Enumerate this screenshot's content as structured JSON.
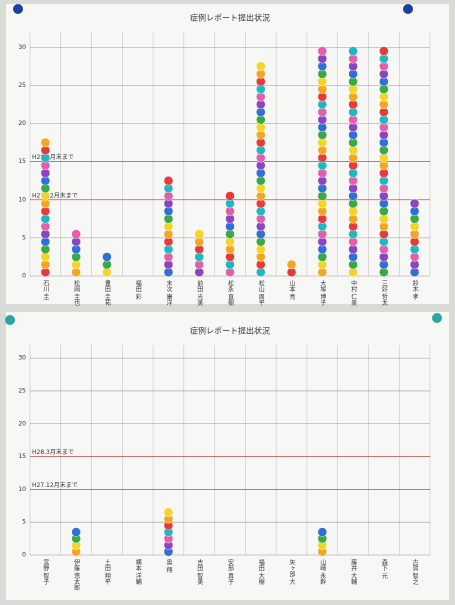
{
  "chart_data": [
    {
      "type": "bar",
      "title": "症例レポート提出状況",
      "categories": [
        "石川 圭",
        "松岡 圭也",
        "豊田 圭祐",
        "福田 彩",
        "末次 康洋",
        "前田 光美",
        "松永 直樹",
        "松山 周平",
        "山本 亮",
        "大塚 博子",
        "中村 仁美",
        "三好 哲太",
        "鈴木 孝"
      ],
      "values": [
        18,
        6,
        3,
        0,
        13,
        6,
        11,
        28,
        2,
        30,
        30,
        30,
        10
      ],
      "ylim": [
        0,
        32
      ],
      "yticks": [
        0,
        5,
        10,
        15,
        20,
        25,
        30
      ],
      "annotations": [
        {
          "value": 10,
          "label": "H27.12月末まで"
        },
        {
          "value": 15,
          "label": "H28.3月末まで"
        }
      ]
    },
    {
      "type": "bar",
      "title": "症例レポート提出状況",
      "categories": [
        "宮野 智子",
        "伊藤 悠太郎",
        "土田 翔平",
        "横本 洋輔",
        "奥 翔",
        "吉田 智美",
        "安部 真子",
        "福田 大樹",
        "矢ヶ部 大",
        "山崎 永幹",
        "藤井 大輔",
        "森下 元",
        "古賀 智之"
      ],
      "values": [
        0,
        4,
        0,
        0,
        7,
        0,
        0,
        0,
        0,
        4,
        0,
        0,
        0
      ],
      "ylim": [
        0,
        32
      ],
      "yticks": [
        0,
        5,
        10,
        15,
        20,
        25,
        30
      ],
      "annotations": [
        {
          "value": 10,
          "label": "H27.12月末まで"
        },
        {
          "value": 15,
          "label": "H28.3月末まで"
        }
      ]
    }
  ]
}
